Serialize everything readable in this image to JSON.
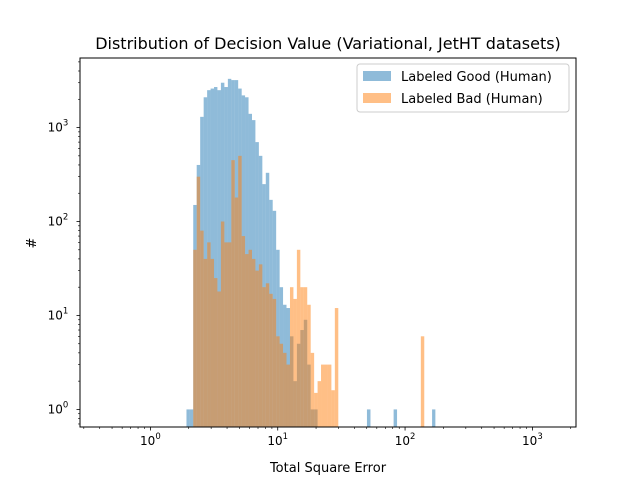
{
  "chart_data": {
    "type": "bar",
    "title": "Distribution of Decision Value (Variational, JetHT datasets)",
    "xlabel": "Total Square Error",
    "ylabel": "#",
    "xscale": "log",
    "yscale": "log",
    "xlim": [
      0.28,
      2200
    ],
    "ylim": [
      0.65,
      5500
    ],
    "x_ticks": [
      {
        "v": 1,
        "base": "10",
        "exp": "0"
      },
      {
        "v": 10,
        "base": "10",
        "exp": "1"
      },
      {
        "v": 100,
        "base": "10",
        "exp": "2"
      },
      {
        "v": 1000,
        "base": "10",
        "exp": "3"
      }
    ],
    "y_ticks": [
      {
        "v": 1,
        "base": "10",
        "exp": "0"
      },
      {
        "v": 10,
        "base": "10",
        "exp": "1"
      },
      {
        "v": 100,
        "base": "10",
        "exp": "2"
      },
      {
        "v": 1000,
        "base": "10",
        "exp": "3"
      }
    ],
    "legend": "top-right",
    "grid": false,
    "series": [
      {
        "name": "Labeled Good (Human)",
        "color": "#1f77b4",
        "opacity": 0.5,
        "bins": [
          [
            1.92,
            2.04,
            1
          ],
          [
            2.04,
            2.17,
            1
          ],
          [
            2.17,
            2.31,
            150
          ],
          [
            2.31,
            2.46,
            400
          ],
          [
            2.46,
            2.62,
            1300
          ],
          [
            2.62,
            2.79,
            2100
          ],
          [
            2.79,
            2.97,
            2500
          ],
          [
            2.97,
            3.16,
            2600
          ],
          [
            3.16,
            3.36,
            2700
          ],
          [
            3.36,
            3.58,
            2500
          ],
          [
            3.58,
            3.81,
            3000
          ],
          [
            3.81,
            4.06,
            2700
          ],
          [
            4.06,
            4.32,
            3300
          ],
          [
            4.32,
            4.6,
            3200
          ],
          [
            4.6,
            4.89,
            3200
          ],
          [
            4.89,
            5.21,
            2600
          ],
          [
            5.21,
            5.54,
            2200
          ],
          [
            5.54,
            5.9,
            2100
          ],
          [
            5.9,
            6.28,
            1400
          ],
          [
            6.28,
            6.68,
            1200
          ],
          [
            6.68,
            7.11,
            700
          ],
          [
            7.11,
            7.57,
            500
          ],
          [
            7.57,
            8.06,
            250
          ],
          [
            8.06,
            8.58,
            330
          ],
          [
            8.58,
            9.13,
            170
          ],
          [
            9.13,
            9.72,
            130
          ],
          [
            9.72,
            10.35,
            50
          ],
          [
            10.35,
            11.01,
            20
          ],
          [
            11.01,
            11.72,
            13
          ],
          [
            11.72,
            12.48,
            12
          ],
          [
            12.48,
            13.28,
            6
          ],
          [
            13.28,
            14.14,
            2
          ],
          [
            14.14,
            15.05,
            5
          ],
          [
            15.05,
            16.02,
            7
          ],
          [
            16.02,
            17.05,
            9
          ],
          [
            17.05,
            18.15,
            3
          ],
          [
            18.15,
            19.32,
            1
          ],
          [
            19.32,
            20.56,
            1
          ],
          [
            50.2,
            53.5,
            1
          ],
          [
            81.3,
            86.5,
            1
          ],
          [
            163.0,
            173.0,
            1
          ]
        ]
      },
      {
        "name": "Labeled Bad (Human)",
        "color": "#ff7f0e",
        "opacity": 0.5,
        "bins": [
          [
            2.17,
            2.31,
            50
          ],
          [
            2.31,
            2.46,
            300
          ],
          [
            2.46,
            2.62,
            80
          ],
          [
            2.62,
            2.79,
            40
          ],
          [
            2.79,
            2.97,
            60
          ],
          [
            2.97,
            3.16,
            40
          ],
          [
            3.16,
            3.36,
            25
          ],
          [
            3.36,
            3.58,
            18
          ],
          [
            3.58,
            3.81,
            100
          ],
          [
            3.81,
            4.06,
            60
          ],
          [
            4.06,
            4.32,
            60
          ],
          [
            4.32,
            4.6,
            450
          ],
          [
            4.6,
            4.89,
            180
          ],
          [
            4.89,
            5.21,
            500
          ],
          [
            5.21,
            5.54,
            70
          ],
          [
            5.54,
            5.9,
            45
          ],
          [
            5.9,
            6.28,
            50
          ],
          [
            6.28,
            6.68,
            40
          ],
          [
            6.68,
            7.11,
            30
          ],
          [
            7.11,
            7.57,
            35
          ],
          [
            7.57,
            8.06,
            20
          ],
          [
            8.06,
            8.58,
            22
          ],
          [
            8.58,
            9.13,
            17
          ],
          [
            9.13,
            9.72,
            15
          ],
          [
            9.72,
            10.35,
            6
          ],
          [
            10.35,
            11.01,
            5
          ],
          [
            11.01,
            11.72,
            4
          ],
          [
            11.72,
            12.48,
            3
          ],
          [
            12.48,
            13.28,
            20
          ],
          [
            13.28,
            14.14,
            15
          ],
          [
            14.14,
            15.05,
            50
          ],
          [
            15.05,
            16.02,
            20
          ],
          [
            16.02,
            17.05,
            20
          ],
          [
            17.05,
            18.15,
            13
          ],
          [
            18.15,
            19.32,
            4
          ],
          [
            19.32,
            20.56,
            1.5
          ],
          [
            20.56,
            21.88,
            2
          ],
          [
            21.88,
            23.29,
            3
          ],
          [
            23.29,
            24.79,
            3
          ],
          [
            24.79,
            26.39,
            3
          ],
          [
            26.39,
            28.09,
            1.6
          ],
          [
            28.09,
            29.9,
            12
          ],
          [
            133.0,
            141.5,
            6
          ]
        ]
      }
    ]
  }
}
